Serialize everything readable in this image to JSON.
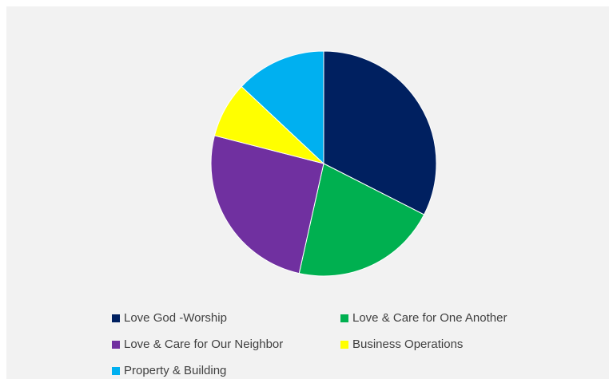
{
  "chart_data": {
    "type": "pie",
    "start_angle_deg": 0,
    "direction": "clockwise",
    "legend_position": "bottom",
    "slices": [
      {
        "label": "Love God -Worship",
        "value": 32.5,
        "color": "#002060"
      },
      {
        "label": "Love & Care for One Another",
        "value": 21.0,
        "color": "#00b050"
      },
      {
        "label": "Love & Care for Our Neighbor",
        "value": 25.5,
        "color": "#7030a0"
      },
      {
        "label": "Business Operations",
        "value": 8.0,
        "color": "#ffff00"
      },
      {
        "label": "Property & Building",
        "value": 13.0,
        "color": "#00b0f0"
      }
    ]
  }
}
